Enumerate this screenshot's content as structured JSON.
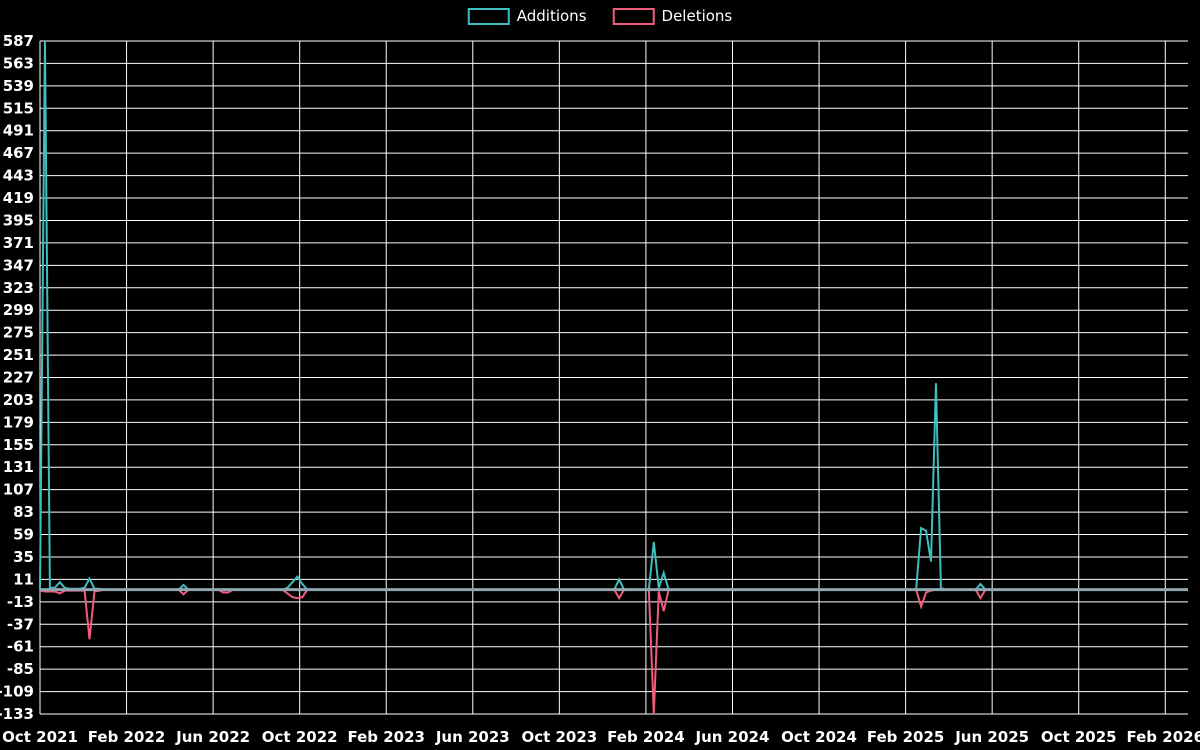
{
  "legend": [
    {
      "label": "Additions",
      "color": "#3FBDBF"
    },
    {
      "label": "Deletions",
      "color": "#F15C7C"
    }
  ],
  "colors": {
    "background": "#000000",
    "grid": "#FFFFFF",
    "text": "#FFFFFF",
    "zero_line": "#8FA6B0",
    "additions": "#3FBDBF",
    "deletions": "#F15C7C"
  },
  "chart_data": {
    "type": "line",
    "title": "",
    "xlabel": "",
    "ylabel": "",
    "legend_position": "top",
    "grid": true,
    "x_unit": "week",
    "weeks_total": 232,
    "x_tick_labels": [
      "Oct 2021",
      "Feb 2022",
      "Jun 2022",
      "Oct 2022",
      "Feb 2023",
      "Jun 2023",
      "Oct 2023",
      "Feb 2024",
      "Jun 2024",
      "Oct 2024",
      "Feb 2025",
      "Jun 2025",
      "Oct 2025",
      "Feb 2026"
    ],
    "x_tick_month_step": 4,
    "y_ticks": [
      587,
      563,
      539,
      515,
      491,
      467,
      443,
      419,
      395,
      371,
      347,
      323,
      299,
      275,
      251,
      227,
      203,
      179,
      155,
      131,
      107,
      83,
      59,
      35,
      11,
      -13,
      -37,
      -61,
      -85,
      -109,
      -133
    ],
    "y_tick_step": 24,
    "ylim": [
      -133,
      587
    ],
    "series_names": [
      "Additions",
      "Deletions"
    ],
    "default_value": 0,
    "events_format": [
      "week",
      "additions",
      "deletions"
    ],
    "events": [
      [
        0,
        0,
        -1
      ],
      [
        1,
        587,
        -2
      ],
      [
        2,
        2,
        -2
      ],
      [
        3,
        2,
        -2
      ],
      [
        4,
        8,
        -4
      ],
      [
        5,
        2,
        -1
      ],
      [
        6,
        1,
        -1
      ],
      [
        7,
        1,
        -1
      ],
      [
        8,
        1,
        -1
      ],
      [
        9,
        2,
        -1
      ],
      [
        10,
        12,
        -53
      ],
      [
        11,
        1,
        -2
      ],
      [
        12,
        1,
        -1
      ],
      [
        29,
        5,
        -5
      ],
      [
        37,
        0,
        -3
      ],
      [
        38,
        0,
        -3
      ],
      [
        50,
        2,
        -4
      ],
      [
        51,
        8,
        -8
      ],
      [
        52,
        14,
        -9
      ],
      [
        53,
        6,
        -8
      ],
      [
        117,
        11,
        -9
      ],
      [
        124,
        51,
        -133
      ],
      [
        125,
        2,
        -2
      ],
      [
        126,
        18,
        -23
      ],
      [
        178,
        66,
        -18
      ],
      [
        179,
        63,
        -3
      ],
      [
        180,
        30,
        -1
      ],
      [
        181,
        221,
        0
      ],
      [
        182,
        2,
        0
      ],
      [
        190,
        6,
        -9
      ]
    ]
  }
}
